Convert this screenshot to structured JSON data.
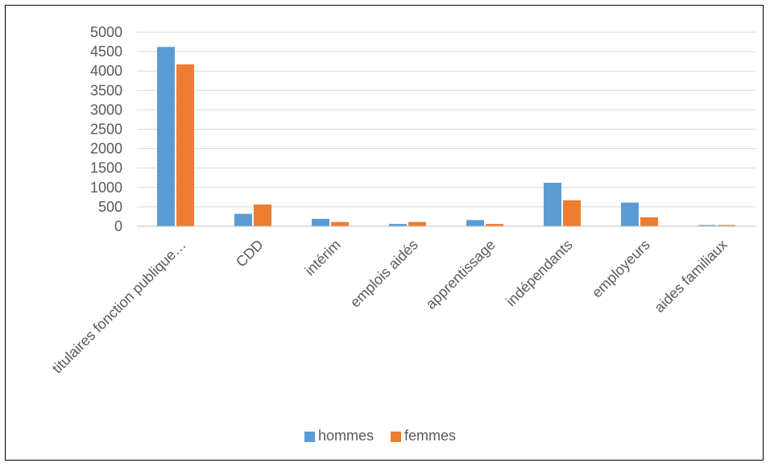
{
  "chart_data": {
    "type": "bar",
    "title": "",
    "xlabel": "",
    "ylabel": "",
    "ylim": [
      0,
      5000
    ],
    "yticks": [
      0,
      500,
      1000,
      1500,
      2000,
      2500,
      3000,
      3500,
      4000,
      4500,
      5000
    ],
    "grid": true,
    "legend_position": "bottom",
    "categories": [
      "titulaires fonction publique…",
      "CDD",
      "intérim",
      "emplois aidés",
      "apprentissage",
      "indépendants",
      "employeurs",
      "aides familiaux"
    ],
    "series": [
      {
        "name": "hommes",
        "color": "#5B9BD5",
        "values": [
          4620,
          320,
          190,
          60,
          160,
          1120,
          610,
          30
        ]
      },
      {
        "name": "femmes",
        "color": "#ED7D31",
        "values": [
          4170,
          560,
          110,
          110,
          60,
          670,
          230,
          30
        ]
      }
    ]
  }
}
